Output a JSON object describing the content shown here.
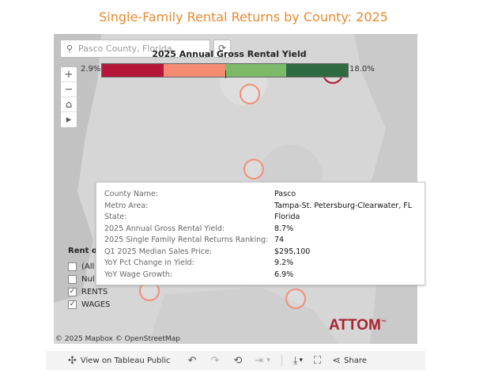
{
  "title": "Single-Family Rental Returns by County: 2025",
  "search": {
    "placeholder": "Pasco County, Florida",
    "icon": "search-icon"
  },
  "legend": {
    "title": "2025 Annual Gross Rental Yield",
    "min_label": "2.9%",
    "max_label": "18.0%",
    "colors": [
      "#b5173b",
      "#f58b72",
      "#7cba69",
      "#2e6b40"
    ]
  },
  "map_controls": [
    "+",
    "−",
    "⌂",
    "▸"
  ],
  "filter": {
    "title": "Rent or",
    "options": [
      {
        "label": "(All",
        "checked": false
      },
      {
        "label": "Nul",
        "checked": false
      },
      {
        "label": "RENTS",
        "checked": true
      },
      {
        "label": "WAGES",
        "checked": true
      }
    ]
  },
  "tooltip": {
    "rows": [
      {
        "label": "County Name:",
        "value": "Pasco"
      },
      {
        "label": "Metro Area:",
        "value": "Tampa-St. Petersburg-Clearwater, FL"
      },
      {
        "label": "State:",
        "value": "Florida"
      },
      {
        "label": "2025 Annual Gross Rental Yield:",
        "value": "8.7%"
      },
      {
        "label": "2025 Single Family Rental Returns Ranking:",
        "value": "74"
      },
      {
        "label": "Q1 2025 Median Sales Price:",
        "value": "$295,100"
      },
      {
        "label": "YoY Pct Change in Yield:",
        "value": "9.2%"
      },
      {
        "label": "YoY Wage Growth:",
        "value": "6.9%"
      }
    ]
  },
  "attribution": "© 2025 Mapbox  © OpenStreetMap",
  "logo": {
    "text": "ATTOM",
    "tm": "™"
  },
  "toolbar": {
    "view_label": "View on Tableau Public",
    "share_label": "Share"
  }
}
